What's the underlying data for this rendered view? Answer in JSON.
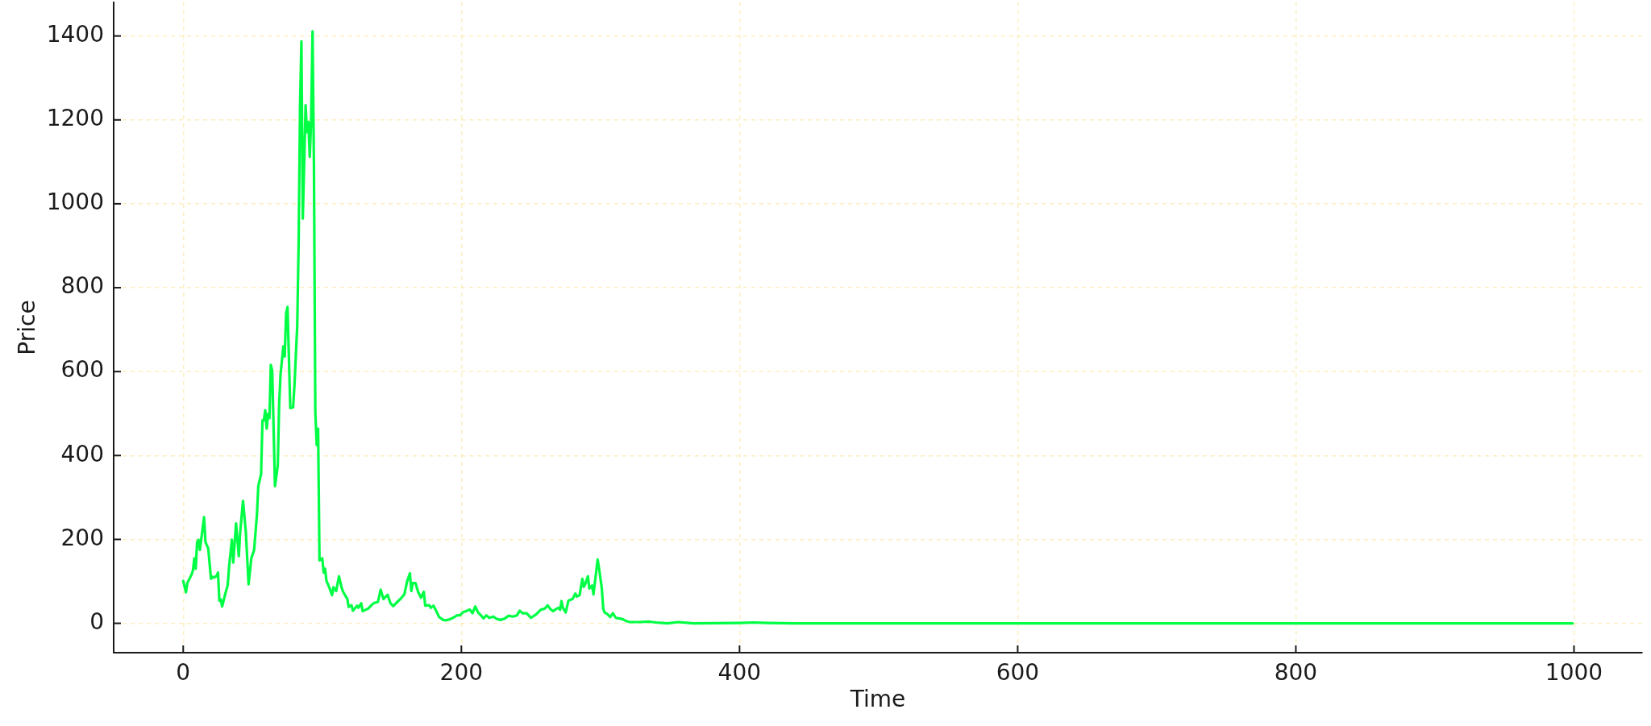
{
  "chart_data": {
    "type": "line",
    "xlabel": "Time",
    "ylabel": "Price",
    "x": [
      0,
      2,
      3,
      6,
      7,
      8,
      9,
      10,
      11,
      12,
      15,
      16,
      18,
      20,
      21,
      22,
      24,
      25,
      26,
      27,
      28,
      30,
      32,
      33,
      35,
      36,
      38,
      40,
      41,
      43,
      45,
      47,
      49,
      51,
      53,
      54,
      56,
      57,
      58,
      59,
      60,
      61,
      62,
      63,
      64,
      66,
      68,
      69,
      70,
      72,
      73,
      74,
      75,
      77,
      79,
      80,
      82,
      83,
      84,
      85,
      86,
      88,
      89,
      90,
      91,
      92,
      93,
      94,
      95,
      96,
      97,
      98,
      100,
      101,
      102,
      103,
      105,
      107,
      108,
      110,
      112,
      114,
      115,
      118,
      119,
      121,
      122,
      125,
      126,
      128,
      129,
      131,
      133,
      135,
      137,
      140,
      142,
      144,
      147,
      149,
      151,
      154,
      157,
      159,
      161,
      163,
      164,
      165,
      167,
      169,
      171,
      173,
      174,
      177,
      178,
      180,
      182,
      184,
      187,
      189,
      192,
      195,
      197,
      199,
      201,
      204,
      206,
      208,
      210,
      212,
      214,
      216,
      218,
      220,
      223,
      225,
      228,
      231,
      234,
      237,
      240,
      242,
      244,
      247,
      250,
      254,
      257,
      260,
      262,
      264,
      266,
      268,
      270,
      271,
      272,
      273,
      275,
      277,
      280,
      282,
      283,
      285,
      287,
      288,
      289,
      291,
      292,
      294,
      295,
      298,
      299,
      301,
      302,
      303,
      305,
      307,
      309,
      311,
      313,
      316,
      318,
      321,
      328,
      335,
      340,
      348,
      356,
      367,
      400,
      410,
      420,
      440,
      600,
      800,
      999
    ],
    "series": [
      {
        "color": "#00ff44",
        "values": [
          101,
          74,
          96,
          116,
          126,
          155,
          130,
          194,
          199,
          175,
          253,
          194,
          178,
          106,
          111,
          109,
          113,
          121,
          54,
          57,
          40,
          67,
          91,
          135,
          199,
          145,
          238,
          160,
          219,
          292,
          219,
          93,
          155,
          175,
          258,
          327,
          356,
          484,
          484,
          508,
          464,
          499,
          489,
          616,
          602,
          327,
          376,
          523,
          594,
          660,
          636,
          739,
          754,
          513,
          515,
          567,
          710,
          906,
          1230,
          1387,
          965,
          1235,
          1171,
          1195,
          1112,
          1200,
          1411,
          1092,
          503,
          425,
          464,
          150,
          155,
          121,
          130,
          101,
          86,
          67,
          86,
          77,
          112,
          84,
          75,
          58,
          39,
          43,
          30,
          42,
          37,
          48,
          29,
          32,
          35,
          42,
          48,
          51,
          80,
          58,
          68,
          48,
          41,
          51,
          61,
          69,
          100,
          119,
          77,
          96,
          96,
          74,
          61,
          75,
          42,
          43,
          37,
          42,
          29,
          15,
          8,
          7,
          10,
          15,
          19,
          19,
          26,
          30,
          33,
          24,
          40,
          26,
          19,
          12,
          19,
          13,
          16,
          11,
          8,
          11,
          18,
          16,
          19,
          30,
          24,
          24,
          13,
          22,
          32,
          35,
          43,
          34,
          29,
          34,
          37,
          32,
          53,
          37,
          26,
          54,
          58,
          71,
          64,
          67,
          106,
          87,
          93,
          112,
          83,
          90,
          69,
          152,
          131,
          83,
          35,
          26,
          22,
          15,
          24,
          13,
          12,
          10,
          6,
          3,
          3,
          4,
          2,
          0,
          3,
          0,
          1,
          2,
          1,
          0,
          0,
          0,
          0
        ]
      }
    ],
    "xlim": [
      -50,
      1049
    ],
    "ylim": [
      -70,
      1480
    ],
    "xticks": [
      0,
      200,
      400,
      600,
      800,
      1000
    ],
    "yticks": [
      0,
      200,
      400,
      600,
      800,
      1000,
      1200,
      1400
    ],
    "grid": true
  }
}
